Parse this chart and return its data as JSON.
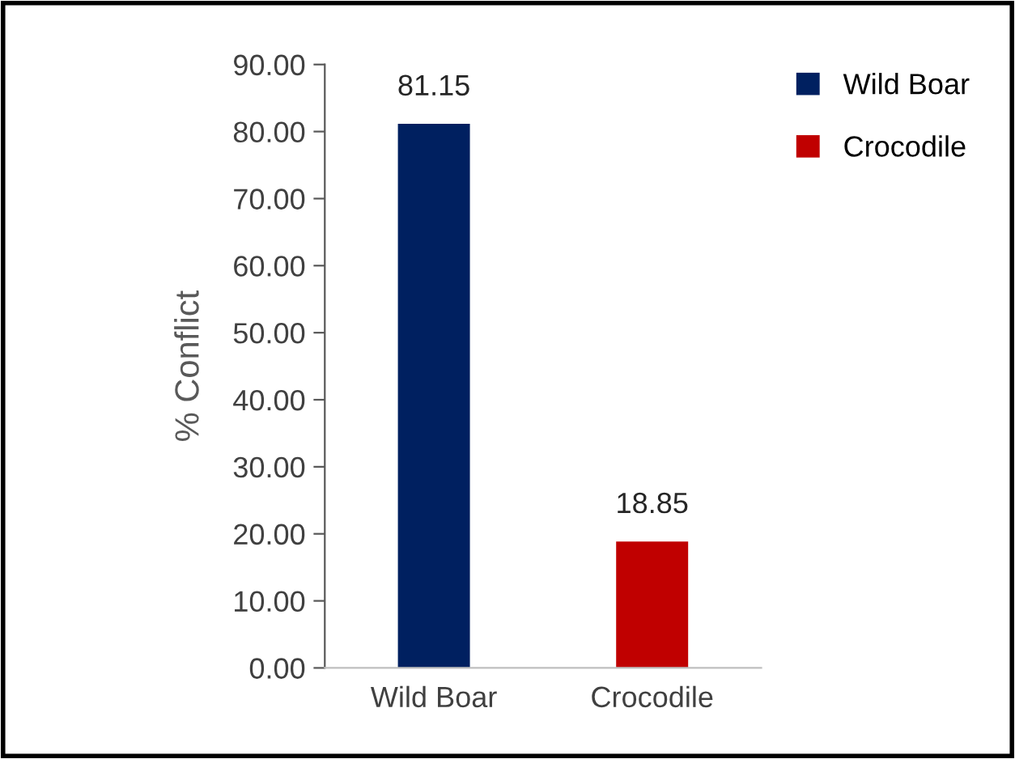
{
  "chart_data": {
    "type": "bar",
    "ylabel": "% Conflict",
    "categories": [
      "Wild Boar",
      "Crocodile"
    ],
    "series": [
      {
        "name": "Wild Boar",
        "color": "#002060",
        "values": [
          81.15,
          null
        ]
      },
      {
        "name": "Crocodile",
        "color": "#c00000",
        "values": [
          null,
          18.85
        ]
      }
    ],
    "ylim": [
      0,
      90
    ],
    "yticks": [
      {
        "value": 0,
        "label": "0.00"
      },
      {
        "value": 10,
        "label": "10.00"
      },
      {
        "value": 20,
        "label": "20.00"
      },
      {
        "value": 30,
        "label": "30.00"
      },
      {
        "value": 40,
        "label": "40.00"
      },
      {
        "value": 50,
        "label": "50.00"
      },
      {
        "value": 60,
        "label": "60.00"
      },
      {
        "value": 70,
        "label": "70.00"
      },
      {
        "value": 80,
        "label": "80.00"
      },
      {
        "value": 90,
        "label": "90.00"
      }
    ],
    "data_labels": true,
    "grid": false,
    "legend": "top right"
  }
}
